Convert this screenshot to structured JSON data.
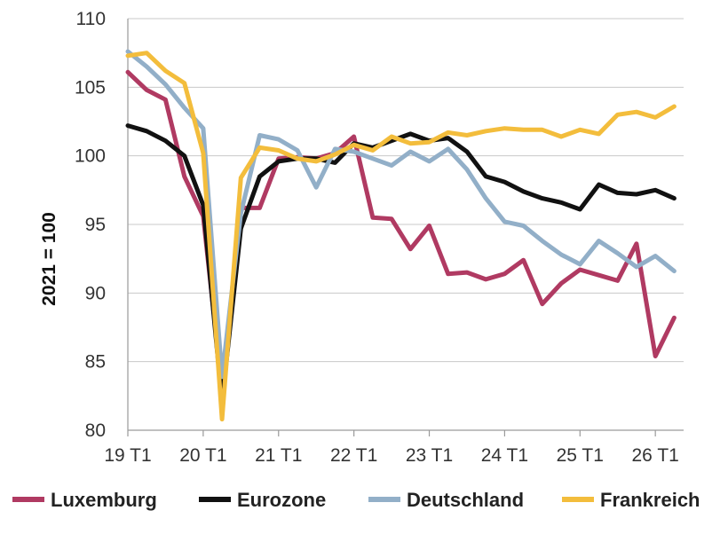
{
  "chart_data": {
    "type": "line",
    "title": "",
    "xlabel": "",
    "ylabel": "2021 = 100",
    "ylim": [
      80,
      110
    ],
    "yticks": [
      "80",
      "85",
      "90",
      "95",
      "100",
      "105",
      "110"
    ],
    "grid": true,
    "legend_position": "bottom",
    "x_tick_labels": [
      "19 T1",
      "20 T1",
      "21 T1",
      "22 T1",
      "23 T1",
      "24 T1",
      "25 T1",
      "26 T1"
    ],
    "x_tick_positions": [
      0,
      4,
      8,
      12,
      16,
      20,
      24,
      28
    ],
    "x_range": [
      0,
      29.5
    ],
    "series": [
      {
        "name": "Luxemburg",
        "color": "#b03a62",
        "values": [
          106.1,
          104.8,
          104.1,
          98.5,
          95.6,
          83.0,
          96.2,
          96.2,
          99.8,
          99.9,
          99.8,
          100.2,
          101.4,
          95.5,
          95.4,
          93.2,
          94.9,
          91.4,
          91.5,
          91.0,
          91.4,
          92.4,
          89.2,
          90.7,
          91.7,
          91.3,
          90.9,
          93.6,
          85.4,
          88.2
        ]
      },
      {
        "name": "Eurozone",
        "color": "#111111",
        "values": [
          102.2,
          101.8,
          101.1,
          100.0,
          96.4,
          82.1,
          94.7,
          98.5,
          99.6,
          99.8,
          99.8,
          99.5,
          100.9,
          100.6,
          101.1,
          101.6,
          101.1,
          101.3,
          100.3,
          98.5,
          98.1,
          97.4,
          96.9,
          96.6,
          96.1,
          97.9,
          97.3,
          97.2,
          97.5,
          96.9
        ]
      },
      {
        "name": "Deutschland",
        "color": "#92afc8",
        "values": [
          107.6,
          106.5,
          105.2,
          103.5,
          102.0,
          83.9,
          95.8,
          101.5,
          101.2,
          100.4,
          97.7,
          100.5,
          100.3,
          99.8,
          99.3,
          100.3,
          99.6,
          100.5,
          99.0,
          96.9,
          95.2,
          94.9,
          93.8,
          92.8,
          92.1,
          93.8,
          92.9,
          91.9,
          92.7,
          91.6
        ]
      },
      {
        "name": "Frankreich",
        "color": "#f3bd3c",
        "values": [
          107.3,
          107.5,
          106.2,
          105.3,
          100.2,
          80.8,
          98.4,
          100.6,
          100.4,
          99.8,
          99.6,
          100.1,
          100.8,
          100.4,
          101.4,
          100.9,
          101.0,
          101.7,
          101.5,
          101.8,
          102.0,
          101.9,
          101.9,
          101.4,
          101.9,
          101.6,
          103.0,
          103.2,
          102.8,
          103.6
        ]
      }
    ]
  }
}
